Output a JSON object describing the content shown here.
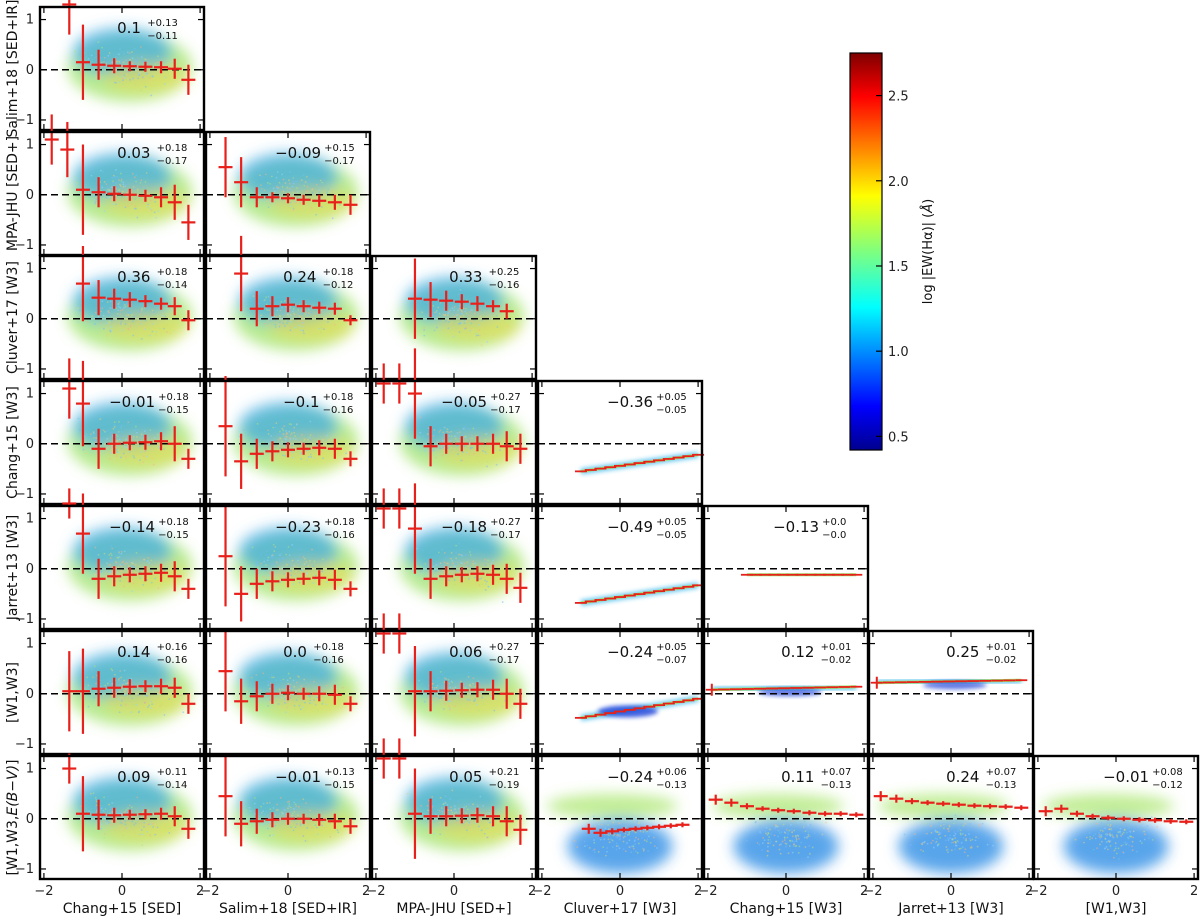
{
  "chart_data": {
    "type": "scatter",
    "layout": "corner-plot",
    "x_range": [
      -2.1,
      2.1
    ],
    "y_range": [
      -1.2,
      1.25
    ],
    "x_ticks": [
      -2,
      0,
      2
    ],
    "y_ticks": [
      -1,
      0,
      1
    ],
    "columns": [
      "Chang+15 [SED]",
      "Salim+18 [SED+IR]",
      "MPA-JHU [SED+]",
      "Cluver+17 [W3]",
      "Chang+15 [W3]",
      "Jarret+13 [W3]",
      "[W1,W3]"
    ],
    "rows": [
      "Salim+18 [SED+IR]",
      "MPA-JHU [SED+]",
      "Cluver+17 [W3]",
      "Chang+15 [W3]",
      "Jarret+13 [W3]",
      "[W1,W3]",
      "[W1,W3,E(B−V)]"
    ],
    "row_labels": [
      "Salim+18 [SED+IR]",
      "MPA-JHU [SED+]",
      "Cluver+17 [W3]",
      "Chang+15 [W3]",
      "Jarret+13 [W3]",
      "[W1,W3]",
      "[W1,W3,"
    ],
    "row_label_suffix": [
      "E(B−V)",
      "]"
    ],
    "colorbar": {
      "label_parts": [
        "log |EW(H",
        "α",
        ")| (",
        "Å",
        ")"
      ],
      "range": [
        0.42,
        2.75
      ],
      "ticks": [
        0.5,
        1.0,
        1.5,
        2.0,
        2.5
      ],
      "tick_labels": [
        "0.5",
        "1.0",
        "1.5",
        "2.0",
        "2.5"
      ],
      "colormap": "jet"
    },
    "panels": [
      {
        "row": 0,
        "col": 0,
        "kind": "scatter",
        "median": "0.1",
        "upper": "+0.13",
        "lower": "−0.11",
        "binned_x": [
          -1.35,
          -1.0,
          -0.6,
          -0.2,
          0.2,
          0.6,
          1.0,
          1.35,
          1.7
        ],
        "binned_y": [
          1.3,
          0.15,
          0.1,
          0.08,
          0.07,
          0.06,
          0.05,
          0.02,
          -0.2
        ],
        "binned_err": [
          0.6,
          0.75,
          0.3,
          0.15,
          0.1,
          0.1,
          0.12,
          0.2,
          0.3
        ]
      },
      {
        "row": 1,
        "col": 0,
        "kind": "scatter",
        "median": "0.03",
        "upper": "+0.18",
        "lower": "−0.17",
        "binned_x": [
          -1.8,
          -1.4,
          -1.0,
          -0.6,
          -0.2,
          0.2,
          0.6,
          1.0,
          1.35,
          1.7
        ],
        "binned_y": [
          1.1,
          0.9,
          0.1,
          0.05,
          0.02,
          0.0,
          -0.02,
          -0.05,
          -0.15,
          -0.55
        ],
        "binned_err": [
          0.5,
          0.55,
          0.9,
          0.3,
          0.15,
          0.12,
          0.12,
          0.2,
          0.35,
          0.35
        ]
      },
      {
        "row": 1,
        "col": 1,
        "kind": "scatter",
        "median": "−0.09",
        "upper": "+0.15",
        "lower": "−0.17",
        "binned_x": [
          -1.6,
          -1.2,
          -0.8,
          -0.4,
          0.0,
          0.4,
          0.8,
          1.2,
          1.6
        ],
        "binned_y": [
          0.55,
          0.25,
          -0.05,
          -0.05,
          -0.07,
          -0.1,
          -0.12,
          -0.15,
          -0.2
        ],
        "binned_err": [
          0.6,
          0.5,
          0.2,
          0.1,
          0.1,
          0.1,
          0.12,
          0.15,
          0.2
        ]
      },
      {
        "row": 2,
        "col": 0,
        "kind": "scatter",
        "median": "0.36",
        "upper": "+0.18",
        "lower": "−0.14",
        "binned_x": [
          -1.0,
          -0.6,
          -0.2,
          0.2,
          0.6,
          1.0,
          1.35,
          1.7
        ],
        "binned_y": [
          0.7,
          0.42,
          0.4,
          0.38,
          0.35,
          0.3,
          0.25,
          -0.03
        ],
        "binned_err": [
          0.75,
          0.35,
          0.2,
          0.15,
          0.12,
          0.12,
          0.18,
          0.2
        ]
      },
      {
        "row": 2,
        "col": 1,
        "kind": "scatter",
        "median": "0.24",
        "upper": "+0.18",
        "lower": "−0.12",
        "binned_x": [
          -1.2,
          -0.8,
          -0.4,
          0.0,
          0.4,
          0.8,
          1.2,
          1.6
        ],
        "binned_y": [
          0.9,
          0.2,
          0.25,
          0.28,
          0.25,
          0.22,
          0.2,
          -0.03
        ],
        "binned_err": [
          0.75,
          0.35,
          0.2,
          0.15,
          0.12,
          0.12,
          0.12,
          0.1
        ]
      },
      {
        "row": 2,
        "col": 2,
        "kind": "scatter",
        "median": "0.33",
        "upper": "+0.25",
        "lower": "−0.16",
        "binned_x": [
          -1.0,
          -0.6,
          -0.2,
          0.2,
          0.6,
          1.0,
          1.35
        ],
        "binned_y": [
          0.4,
          0.38,
          0.36,
          0.34,
          0.3,
          0.25,
          0.15
        ],
        "binned_err": [
          0.8,
          0.35,
          0.2,
          0.15,
          0.15,
          0.12,
          0.15
        ]
      },
      {
        "row": 3,
        "col": 0,
        "kind": "scatter",
        "median": "−0.01",
        "upper": "+0.18",
        "lower": "−0.15",
        "binned_x": [
          -1.35,
          -1.0,
          -0.6,
          -0.2,
          0.2,
          0.6,
          1.0,
          1.35,
          1.7
        ],
        "binned_y": [
          1.1,
          0.8,
          -0.1,
          0.0,
          0.02,
          0.03,
          0.05,
          0.0,
          -0.3
        ],
        "binned_err": [
          0.6,
          0.85,
          0.4,
          0.2,
          0.15,
          0.15,
          0.18,
          0.35,
          0.2
        ]
      },
      {
        "row": 3,
        "col": 1,
        "kind": "scatter",
        "median": "−0.1",
        "upper": "+0.18",
        "lower": "−0.16",
        "binned_x": [
          -1.6,
          -1.2,
          -0.8,
          -0.4,
          0.0,
          0.4,
          0.8,
          1.2,
          1.6
        ],
        "binned_y": [
          0.35,
          -0.35,
          -0.2,
          -0.15,
          -0.12,
          -0.1,
          -0.08,
          -0.1,
          -0.3
        ],
        "binned_err": [
          1.0,
          0.55,
          0.3,
          0.2,
          0.15,
          0.12,
          0.15,
          0.2,
          0.15
        ]
      },
      {
        "row": 3,
        "col": 2,
        "kind": "scatter",
        "median": "−0.05",
        "upper": "+0.27",
        "lower": "−0.17",
        "binned_x": [
          -1.8,
          -1.4,
          -1.0,
          -0.6,
          -0.2,
          0.2,
          0.6,
          1.0,
          1.35,
          1.7
        ],
        "binned_y": [
          1.2,
          1.2,
          1.0,
          -0.05,
          0.0,
          0.0,
          0.0,
          0.0,
          -0.05,
          -0.1
        ],
        "binned_err": [
          0.4,
          0.4,
          0.9,
          0.4,
          0.2,
          0.15,
          0.15,
          0.2,
          0.3,
          0.3
        ]
      },
      {
        "row": 3,
        "col": 3,
        "kind": "line",
        "median": "−0.36",
        "upper": "+0.05",
        "lower": "−0.05",
        "line_x": [
          -1.0,
          2.0
        ],
        "line_y": [
          -0.55,
          -0.22
        ]
      },
      {
        "row": 4,
        "col": 0,
        "kind": "scatter",
        "median": "−0.14",
        "upper": "+0.18",
        "lower": "−0.15",
        "binned_x": [
          -1.35,
          -1.0,
          -0.6,
          -0.2,
          0.2,
          0.6,
          1.0,
          1.35,
          1.7
        ],
        "binned_y": [
          1.3,
          0.7,
          -0.2,
          -0.15,
          -0.12,
          -0.1,
          -0.08,
          -0.15,
          -0.4
        ],
        "binned_err": [
          0.3,
          0.8,
          0.4,
          0.2,
          0.15,
          0.15,
          0.18,
          0.3,
          0.2
        ]
      },
      {
        "row": 4,
        "col": 1,
        "kind": "scatter",
        "median": "−0.23",
        "upper": "+0.18",
        "lower": "−0.16",
        "binned_x": [
          -1.6,
          -1.2,
          -0.8,
          -0.4,
          0.0,
          0.4,
          0.8,
          1.2,
          1.6
        ],
        "binned_y": [
          0.25,
          -0.5,
          -0.3,
          -0.25,
          -0.22,
          -0.2,
          -0.18,
          -0.22,
          -0.4
        ],
        "binned_err": [
          1.0,
          0.55,
          0.3,
          0.2,
          0.15,
          0.12,
          0.15,
          0.2,
          0.15
        ]
      },
      {
        "row": 4,
        "col": 2,
        "kind": "scatter",
        "median": "−0.18",
        "upper": "+0.27",
        "lower": "−0.17",
        "binned_x": [
          -1.8,
          -1.4,
          -1.0,
          -0.6,
          -0.2,
          0.2,
          0.6,
          1.0,
          1.35,
          1.7
        ],
        "binned_y": [
          1.2,
          1.2,
          0.8,
          -0.2,
          -0.15,
          -0.12,
          -0.1,
          -0.12,
          -0.2,
          -0.38
        ],
        "binned_err": [
          0.4,
          0.4,
          0.9,
          0.4,
          0.2,
          0.15,
          0.15,
          0.2,
          0.3,
          0.3
        ]
      },
      {
        "row": 4,
        "col": 3,
        "kind": "line",
        "median": "−0.49",
        "upper": "+0.05",
        "lower": "−0.05",
        "line_x": [
          -1.0,
          2.0
        ],
        "line_y": [
          -0.68,
          -0.33
        ]
      },
      {
        "row": 4,
        "col": 4,
        "kind": "line",
        "median": "−0.13",
        "upper": "+0.0",
        "lower": "−0.0",
        "line_x": [
          -1.0,
          1.8
        ],
        "line_y": [
          -0.12,
          -0.12
        ]
      },
      {
        "row": 5,
        "col": 0,
        "kind": "scatter",
        "median": "0.14",
        "upper": "+0.16",
        "lower": "−0.16",
        "binned_x": [
          -1.35,
          -1.0,
          -0.6,
          -0.2,
          0.2,
          0.6,
          1.0,
          1.35,
          1.7
        ],
        "binned_y": [
          0.05,
          0.05,
          0.1,
          0.12,
          0.14,
          0.15,
          0.15,
          0.12,
          -0.2
        ],
        "binned_err": [
          0.8,
          0.85,
          0.35,
          0.2,
          0.15,
          0.12,
          0.15,
          0.2,
          0.2
        ]
      },
      {
        "row": 5,
        "col": 1,
        "kind": "scatter",
        "median": "0.0",
        "upper": "+0.18",
        "lower": "−0.16",
        "binned_x": [
          -1.6,
          -1.2,
          -0.8,
          -0.4,
          0.0,
          0.4,
          0.8,
          1.2,
          1.6
        ],
        "binned_y": [
          0.45,
          -0.15,
          -0.05,
          0.0,
          0.02,
          0.0,
          0.0,
          -0.02,
          -0.2
        ],
        "binned_err": [
          0.8,
          0.45,
          0.3,
          0.2,
          0.15,
          0.12,
          0.15,
          0.2,
          0.15
        ]
      },
      {
        "row": 5,
        "col": 2,
        "kind": "scatter",
        "median": "0.06",
        "upper": "+0.27",
        "lower": "−0.17",
        "binned_x": [
          -1.8,
          -1.4,
          -1.0,
          -0.6,
          -0.2,
          0.2,
          0.6,
          1.0,
          1.35,
          1.7
        ],
        "binned_y": [
          1.2,
          1.2,
          0.05,
          0.05,
          0.06,
          0.07,
          0.08,
          0.08,
          0.0,
          -0.2
        ],
        "binned_err": [
          0.4,
          0.4,
          0.9,
          0.4,
          0.2,
          0.15,
          0.15,
          0.2,
          0.3,
          0.3
        ]
      },
      {
        "row": 5,
        "col": 3,
        "kind": "line",
        "median": "−0.24",
        "upper": "+0.05",
        "lower": "−0.07",
        "line_x": [
          -1.0,
          2.0
        ],
        "line_y": [
          -0.48,
          -0.1
        ]
      },
      {
        "row": 5,
        "col": 4,
        "kind": "line",
        "median": "0.12",
        "upper": "+0.01",
        "lower": "−0.02",
        "line_x": [
          -1.9,
          1.8
        ],
        "line_y": [
          0.08,
          0.14
        ]
      },
      {
        "row": 5,
        "col": 5,
        "kind": "line",
        "median": "0.25",
        "upper": "+0.01",
        "lower": "−0.02",
        "line_x": [
          -1.9,
          1.8
        ],
        "line_y": [
          0.22,
          0.27
        ]
      },
      {
        "row": 6,
        "col": 0,
        "kind": "scatter",
        "median": "0.09",
        "upper": "+0.11",
        "lower": "−0.14",
        "binned_x": [
          -1.35,
          -1.0,
          -0.6,
          -0.2,
          0.2,
          0.6,
          1.0,
          1.35,
          1.7
        ],
        "binned_y": [
          1.0,
          0.1,
          0.08,
          0.07,
          0.08,
          0.09,
          0.1,
          0.05,
          -0.2
        ],
        "binned_err": [
          0.3,
          0.75,
          0.3,
          0.15,
          0.1,
          0.1,
          0.12,
          0.2,
          0.2
        ]
      },
      {
        "row": 6,
        "col": 1,
        "kind": "scatter",
        "median": "−0.01",
        "upper": "+0.13",
        "lower": "−0.15",
        "binned_x": [
          -1.6,
          -1.2,
          -0.8,
          -0.4,
          0.0,
          0.4,
          0.8,
          1.2,
          1.6
        ],
        "binned_y": [
          0.45,
          -0.1,
          -0.05,
          -0.02,
          0.0,
          0.0,
          -0.02,
          -0.05,
          -0.15
        ],
        "binned_err": [
          0.8,
          0.45,
          0.25,
          0.15,
          0.12,
          0.1,
          0.12,
          0.15,
          0.15
        ]
      },
      {
        "row": 6,
        "col": 2,
        "kind": "scatter",
        "median": "0.05",
        "upper": "+0.21",
        "lower": "−0.19",
        "binned_x": [
          -1.8,
          -1.4,
          -1.0,
          -0.6,
          -0.2,
          0.2,
          0.6,
          1.0,
          1.35,
          1.7
        ],
        "binned_y": [
          1.2,
          1.2,
          0.1,
          0.05,
          0.05,
          0.06,
          0.07,
          0.05,
          -0.05,
          -0.22
        ],
        "binned_err": [
          0.4,
          0.4,
          0.9,
          0.35,
          0.2,
          0.15,
          0.15,
          0.2,
          0.3,
          0.3
        ]
      },
      {
        "row": 6,
        "col": 3,
        "kind": "scatter",
        "median": "−0.24",
        "upper": "+0.06",
        "lower": "−0.13",
        "binned_x": [
          -0.8,
          -0.5,
          -0.2,
          0.1,
          0.4,
          0.7,
          1.0,
          1.3,
          1.6
        ],
        "binned_y": [
          -0.2,
          -0.28,
          -0.25,
          -0.22,
          -0.2,
          -0.18,
          -0.16,
          -0.14,
          -0.12
        ],
        "binned_err": [
          0.1,
          0.08,
          0.06,
          0.05,
          0.05,
          0.05,
          0.05,
          0.05,
          0.05
        ]
      },
      {
        "row": 6,
        "col": 4,
        "kind": "scatter",
        "median": "0.11",
        "upper": "+0.07",
        "lower": "−0.13",
        "binned_x": [
          -1.8,
          -1.4,
          -1.0,
          -0.6,
          -0.2,
          0.2,
          0.6,
          1.0,
          1.4,
          1.8
        ],
        "binned_y": [
          0.38,
          0.32,
          0.25,
          0.2,
          0.17,
          0.15,
          0.12,
          0.1,
          0.1,
          0.08
        ],
        "binned_err": [
          0.1,
          0.08,
          0.06,
          0.05,
          0.05,
          0.05,
          0.05,
          0.05,
          0.05,
          0.05
        ]
      },
      {
        "row": 6,
        "col": 5,
        "kind": "scatter",
        "median": "0.24",
        "upper": "+0.07",
        "lower": "−0.13",
        "binned_x": [
          -1.8,
          -1.4,
          -1.0,
          -0.6,
          -0.2,
          0.2,
          0.6,
          1.0,
          1.4,
          1.8
        ],
        "binned_y": [
          0.45,
          0.4,
          0.35,
          0.32,
          0.3,
          0.28,
          0.26,
          0.25,
          0.24,
          0.22
        ],
        "binned_err": [
          0.1,
          0.08,
          0.06,
          0.05,
          0.05,
          0.05,
          0.05,
          0.05,
          0.05,
          0.05
        ]
      },
      {
        "row": 6,
        "col": 6,
        "kind": "scatter",
        "median": "−0.01",
        "upper": "+0.08",
        "lower": "−0.12",
        "binned_x": [
          -1.8,
          -1.4,
          -1.0,
          -0.6,
          -0.2,
          0.2,
          0.6,
          1.0,
          1.4,
          1.8
        ],
        "binned_y": [
          0.15,
          0.2,
          0.1,
          0.05,
          0.02,
          0.0,
          -0.02,
          -0.03,
          -0.05,
          -0.06
        ],
        "binned_err": [
          0.1,
          0.08,
          0.06,
          0.05,
          0.05,
          0.05,
          0.05,
          0.05,
          0.05,
          0.05
        ]
      }
    ]
  }
}
